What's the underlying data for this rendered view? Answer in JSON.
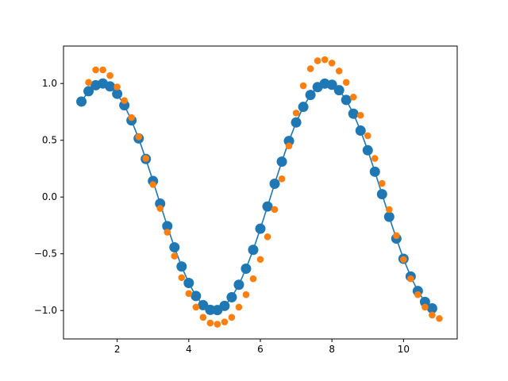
{
  "chart_data": {
    "type": "scatter",
    "title": "",
    "xlabel": "",
    "ylabel": "",
    "xlim": [
      0.5,
      11.5
    ],
    "ylim": [
      -1.25,
      1.33
    ],
    "xticks": [
      2,
      4,
      6,
      8,
      10
    ],
    "yticks": [
      -1.0,
      -0.5,
      0.0,
      0.5,
      1.0
    ],
    "xtick_labels": [
      "2",
      "4",
      "6",
      "8",
      "10"
    ],
    "ytick_labels": [
      "−1.0",
      "−0.5",
      "0.0",
      "0.5",
      "1.0"
    ],
    "grid": false,
    "legend": "none",
    "series": [
      {
        "style": "line-with-markers",
        "color": "#1f77b4",
        "x": [
          1.0,
          1.2,
          1.4,
          1.6,
          1.8,
          2.0,
          2.2,
          2.4,
          2.6,
          2.8,
          3.0,
          3.2,
          3.4,
          3.6,
          3.8,
          4.0,
          4.2,
          4.4,
          4.6,
          4.8,
          5.0,
          5.2,
          5.4,
          5.6,
          5.8,
          6.0,
          6.2,
          6.4,
          6.6,
          6.8,
          7.0,
          7.2,
          7.4,
          7.6,
          7.8,
          8.0,
          8.2,
          8.4,
          8.6,
          8.8,
          9.0,
          9.2,
          9.4,
          9.6,
          9.8,
          10.0,
          10.2,
          10.4,
          10.6,
          10.8
        ],
        "y": [
          0.841,
          0.932,
          0.985,
          1.0,
          0.974,
          0.909,
          0.808,
          0.675,
          0.516,
          0.335,
          0.141,
          -0.058,
          -0.256,
          -0.443,
          -0.612,
          -0.757,
          -0.872,
          -0.952,
          -0.994,
          -0.996,
          -0.959,
          -0.883,
          -0.773,
          -0.631,
          -0.465,
          -0.279,
          -0.083,
          0.117,
          0.312,
          0.494,
          0.657,
          0.794,
          0.899,
          0.968,
          0.999,
          0.989,
          0.941,
          0.855,
          0.734,
          0.585,
          0.412,
          0.223,
          0.025,
          -0.174,
          -0.366,
          -0.544,
          -0.7,
          -0.828,
          -0.924,
          -0.981
        ]
      },
      {
        "style": "markers",
        "color": "#ff7f0e",
        "x": [
          1.2,
          1.4,
          1.6,
          1.8,
          2.0,
          2.2,
          2.4,
          2.6,
          2.8,
          3.0,
          3.2,
          3.4,
          3.6,
          3.8,
          4.0,
          4.2,
          4.4,
          4.6,
          4.8,
          5.0,
          5.2,
          5.4,
          5.6,
          5.8,
          6.0,
          6.2,
          6.4,
          6.6,
          6.8,
          7.0,
          7.2,
          7.4,
          7.6,
          7.8,
          8.0,
          8.2,
          8.4,
          8.6,
          8.8,
          9.0,
          9.2,
          9.4,
          9.6,
          9.8,
          10.0,
          10.2,
          10.4,
          10.6,
          10.8,
          11.0
        ],
        "y": [
          1.01,
          1.12,
          1.12,
          1.07,
          0.97,
          0.85,
          0.7,
          0.53,
          0.34,
          0.11,
          -0.1,
          -0.31,
          -0.52,
          -0.71,
          -0.85,
          -0.97,
          -1.06,
          -1.11,
          -1.12,
          -1.1,
          -1.06,
          -0.97,
          -0.86,
          -0.72,
          -0.55,
          -0.35,
          -0.11,
          0.16,
          0.45,
          0.74,
          0.98,
          1.13,
          1.2,
          1.21,
          1.18,
          1.11,
          1.01,
          0.88,
          0.72,
          0.54,
          0.34,
          0.12,
          -0.11,
          -0.34,
          -0.55,
          -0.72,
          -0.86,
          -0.97,
          -1.04,
          -1.07
        ]
      }
    ]
  }
}
